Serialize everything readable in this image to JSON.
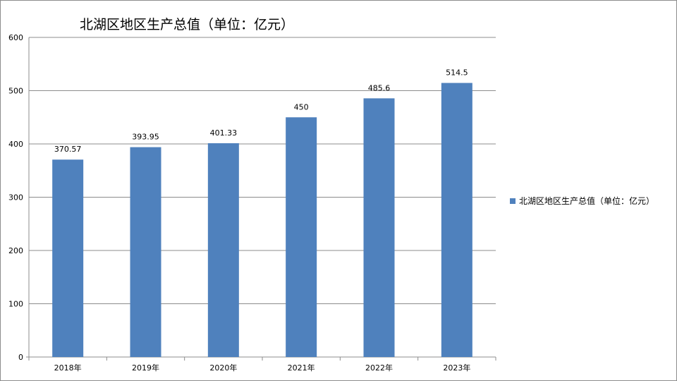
{
  "colors": {
    "bar": "#4f81bd",
    "grid": "#8c8c8c",
    "axis": "#8c8c8c"
  },
  "chart_data": {
    "type": "bar",
    "title": "北湖区地区生产总值（单位：亿元）",
    "categories": [
      "2018年",
      "2019年",
      "2020年",
      "2021年",
      "2022年",
      "2023年"
    ],
    "series": [
      {
        "name": "北湖区地区生产总值（单位：亿元）",
        "values": [
          370.57,
          393.95,
          401.33,
          450,
          485.6,
          514.5
        ],
        "labels": [
          "370.57",
          "393.95",
          "401.33",
          "450",
          "485.6",
          "514.5"
        ]
      }
    ],
    "y_ticks": [
      "0",
      "100",
      "200",
      "300",
      "400",
      "500",
      "600"
    ],
    "ylim": [
      0,
      600
    ],
    "grid": true,
    "legend": "right",
    "xlabel": "",
    "ylabel": ""
  }
}
